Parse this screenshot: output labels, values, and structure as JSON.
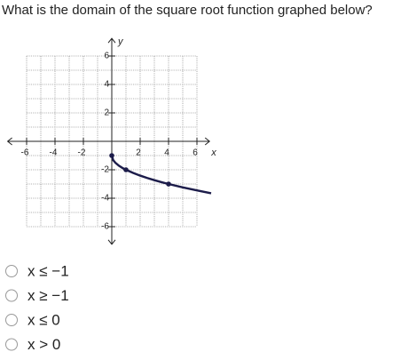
{
  "question": "What is the domain of the square root function graphed below?",
  "chart_data": {
    "type": "line",
    "x_label": "x",
    "y_label": "y",
    "x": [
      0,
      0.1,
      0.25,
      0.5,
      0.75,
      1,
      1.5,
      2,
      2.5,
      3,
      3.5,
      4,
      5,
      6,
      7
    ],
    "values": [
      -1,
      -1.32,
      -1.5,
      -1.71,
      -1.87,
      -2,
      -2.22,
      -2.41,
      -2.58,
      -2.73,
      -2.87,
      -3,
      -3.24,
      -3.45,
      -3.65
    ],
    "points": {
      "x": [
        0,
        1,
        4
      ],
      "values": [
        -1,
        -2,
        -3
      ]
    },
    "color": "#1c1c4a",
    "xlim": [
      -7.4,
      7.2
    ],
    "ylim": [
      -7.3,
      7.3
    ],
    "xticks": [
      -6,
      -4,
      -2,
      2,
      4,
      6
    ],
    "yticks": [
      6,
      4,
      2,
      -2,
      -4,
      -6
    ],
    "gridx": [
      -6,
      -5,
      -4,
      -3,
      -2,
      -1,
      0,
      1,
      2,
      3,
      4,
      5,
      6
    ],
    "gridy": [
      -6,
      -5,
      -4,
      -3,
      -2,
      -1,
      0,
      1,
      2,
      3,
      4,
      5,
      6
    ]
  },
  "options": [
    "x ≤ −1",
    "x ≥ −1",
    "x ≤ 0",
    "x > 0"
  ]
}
